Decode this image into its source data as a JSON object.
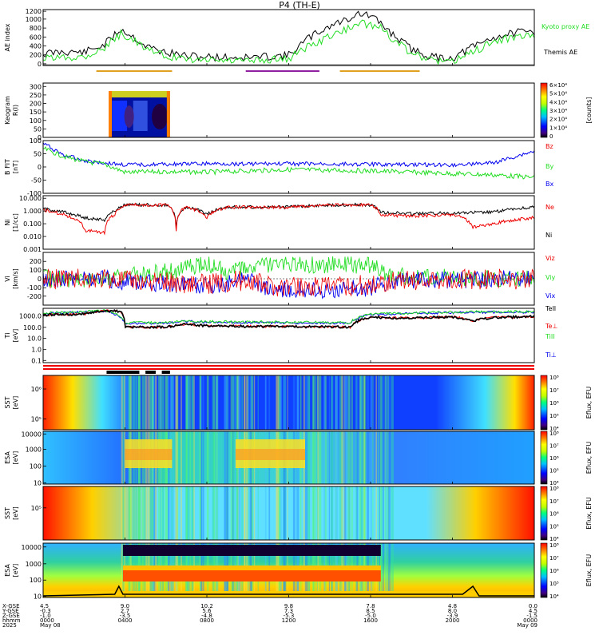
{
  "title": "P4 (TH-E)",
  "colors": {
    "black": "#000000",
    "green": "#22dd22",
    "red": "#ee0000",
    "blue": "#0000ee",
    "orange": "#e0a020",
    "purple": "#9020a0"
  },
  "chart_data": [
    {
      "type": "line",
      "panel": "ae",
      "ylabel": "AE index",
      "ylim": [
        0,
        1200
      ],
      "yticks": [
        "0",
        "200",
        "400",
        "600",
        "800",
        "1000",
        "1200"
      ],
      "legend": [
        {
          "name": "Kyoto proxy AE",
          "color": "#22dd22"
        },
        {
          "name": "Themis AE",
          "color": "#000000"
        }
      ],
      "x_hours": [
        0,
        1,
        2,
        3,
        3.8,
        4.4,
        5,
        5.8,
        7,
        8.5,
        10,
        12,
        13,
        14,
        15,
        15.3,
        16,
        16.5,
        17,
        18,
        19,
        20,
        21,
        22,
        23,
        24
      ],
      "series": [
        {
          "name": "Themis AE",
          "values": [
            250,
            300,
            280,
            450,
            780,
            620,
            420,
            300,
            200,
            180,
            170,
            220,
            600,
            850,
            1020,
            1120,
            1060,
            900,
            700,
            350,
            180,
            160,
            400,
            600,
            700,
            720
          ]
        },
        {
          "name": "Kyoto proxy AE",
          "values": [
            150,
            180,
            200,
            380,
            680,
            560,
            350,
            220,
            120,
            110,
            100,
            150,
            420,
            620,
            820,
            900,
            880,
            820,
            600,
            250,
            100,
            80,
            300,
            500,
            620,
            650
          ]
        }
      ],
      "bars": [
        {
          "from": 2.6,
          "to": 6.3,
          "color": "#e0a020"
        },
        {
          "from": 9.9,
          "to": 13.5,
          "color": "#9020a0"
        },
        {
          "from": 14.5,
          "to": 18.4,
          "color": "#e0a020"
        }
      ]
    },
    {
      "type": "heatmap",
      "panel": "keogram",
      "ylabel": "Keogram",
      "axis_unit": "R(I)",
      "ylim": [
        0,
        320
      ],
      "yticks": [
        "0",
        "50",
        "100",
        "150",
        "200",
        "250",
        "300"
      ],
      "coverage_hours": [
        3.2,
        6.2
      ],
      "colorbar_label": "[counts]",
      "colorbar_ticks": [
        "0",
        "1×10⁴",
        "2×10⁴",
        "3×10⁴",
        "4×10⁴",
        "5×10⁴",
        "6×10⁴"
      ]
    },
    {
      "type": "line",
      "panel": "bfield",
      "ylabel": "B FIT",
      "unit": "[nT]",
      "ylim": [
        -100,
        100
      ],
      "yticks": [
        "-100",
        "-50",
        "0",
        "50",
        "100"
      ],
      "legend": [
        {
          "name": "Bz",
          "color": "#ee0000"
        },
        {
          "name": "By",
          "color": "#22dd22"
        },
        {
          "name": "Bx",
          "color": "#0000ee"
        }
      ],
      "series": [
        {
          "name": "Bx",
          "points": [
            [
              0,
              90
            ],
            [
              1,
              45
            ],
            [
              2,
              25
            ],
            [
              3,
              15
            ],
            [
              4,
              8
            ],
            [
              6,
              10
            ],
            [
              8,
              12
            ],
            [
              12,
              12
            ],
            [
              16,
              10
            ],
            [
              20,
              8
            ],
            [
              22,
              15
            ],
            [
              24,
              60
            ]
          ]
        },
        {
          "name": "By",
          "points": [
            [
              0,
              70
            ],
            [
              1,
              40
            ],
            [
              2,
              20
            ],
            [
              3,
              10
            ],
            [
              4,
              -20
            ],
            [
              6,
              -18
            ],
            [
              8,
              -20
            ],
            [
              12,
              -10
            ],
            [
              16,
              -15
            ],
            [
              20,
              -25
            ],
            [
              22,
              -30
            ],
            [
              24,
              -40
            ]
          ]
        }
      ]
    },
    {
      "type": "line",
      "panel": "density",
      "ylabel": "Ni",
      "unit": "[1/cc]",
      "log": true,
      "yticks": [
        "0.001",
        "0.010",
        "0.100",
        "1.000",
        "10.000"
      ],
      "legend": [
        {
          "name": "Ne",
          "color": "#ee0000"
        },
        {
          "name": "Ni",
          "color": "#000000"
        }
      ],
      "series": [
        {
          "name": "Ni",
          "points": [
            [
              0,
              1.5
            ],
            [
              1,
              0.8
            ],
            [
              2,
              0.3
            ],
            [
              3,
              0.2
            ],
            [
              3.5,
              1
            ],
            [
              4,
              3
            ],
            [
              6,
              3
            ],
            [
              6.5,
              0.05
            ],
            [
              7,
              2
            ],
            [
              8,
              0.5
            ],
            [
              9,
              2
            ],
            [
              12,
              2
            ],
            [
              14,
              3
            ],
            [
              16,
              3
            ],
            [
              16.5,
              0.8
            ],
            [
              18,
              0.6
            ],
            [
              20,
              0.7
            ],
            [
              22,
              0.8
            ],
            [
              24,
              2
            ]
          ]
        },
        {
          "name": "Ne",
          "points": [
            [
              0,
              1.2
            ],
            [
              1,
              0.5
            ],
            [
              2,
              0.03
            ],
            [
              3,
              0.02
            ],
            [
              3.5,
              0.5
            ],
            [
              4,
              3
            ],
            [
              6,
              3
            ],
            [
              6.5,
              0.02
            ],
            [
              7,
              2
            ],
            [
              8,
              0.3
            ],
            [
              9,
              2
            ],
            [
              12,
              2
            ],
            [
              14,
              3
            ],
            [
              16,
              3
            ],
            [
              16.5,
              0.5
            ],
            [
              18,
              0.4
            ],
            [
              20,
              0.5
            ],
            [
              21,
              0.05
            ],
            [
              22,
              0.1
            ],
            [
              24,
              0.3
            ]
          ]
        }
      ]
    },
    {
      "type": "line",
      "panel": "velocity",
      "ylabel": "Vi",
      "unit": "[km/s]",
      "ylim": [
        -300,
        300
      ],
      "yticks": [
        "-200",
        "-100",
        "0",
        "100",
        "200"
      ],
      "legend": [
        {
          "name": "Viz",
          "color": "#ee0000"
        },
        {
          "name": "Viy",
          "color": "#22dd22"
        },
        {
          "name": "Vix",
          "color": "#0000ee"
        }
      ],
      "series": [
        {
          "name": "Viy",
          "points": [
            [
              0,
              0
            ],
            [
              3,
              0
            ],
            [
              4,
              30
            ],
            [
              6,
              80
            ],
            [
              7,
              120
            ],
            [
              8,
              160
            ],
            [
              9,
              80
            ],
            [
              11,
              150
            ],
            [
              14,
              160
            ],
            [
              16,
              150
            ],
            [
              17,
              40
            ],
            [
              20,
              10
            ],
            [
              24,
              0
            ]
          ]
        },
        {
          "name": "Vix",
          "points": [
            [
              0,
              0
            ],
            [
              3,
              0
            ],
            [
              4,
              -30
            ],
            [
              6,
              -60
            ],
            [
              8,
              -80
            ],
            [
              10,
              -20
            ],
            [
              11,
              -120
            ],
            [
              14,
              -130
            ],
            [
              16,
              -100
            ],
            [
              17,
              -20
            ],
            [
              24,
              0
            ]
          ]
        }
      ]
    },
    {
      "type": "line",
      "panel": "temperature",
      "ylabel": "Ti",
      "unit": "[eV]",
      "log": true,
      "yticks": [
        "0.1",
        "1.0",
        "10.0",
        "100.0",
        "1000.0"
      ],
      "legend": [
        {
          "name": "TeII",
          "color": "#000000"
        },
        {
          "name": "Te⊥",
          "color": "#ee0000"
        },
        {
          "name": "TiII",
          "color": "#22dd22"
        },
        {
          "name": "Ti⊥",
          "color": "#0000ee"
        }
      ],
      "series": [
        {
          "name": "Te",
          "points": [
            [
              0,
              1000
            ],
            [
              2,
              1200
            ],
            [
              3,
              2500
            ],
            [
              3.8,
              2000
            ],
            [
              4,
              80
            ],
            [
              6,
              80
            ],
            [
              7,
              150
            ],
            [
              8,
              100
            ],
            [
              12,
              90
            ],
            [
              15,
              80
            ],
            [
              16,
              600
            ],
            [
              18,
              500
            ],
            [
              20,
              700
            ],
            [
              21,
              300
            ],
            [
              22,
              600
            ],
            [
              24,
              700
            ]
          ]
        },
        {
          "name": "Ti",
          "points": [
            [
              0,
              1500
            ],
            [
              2,
              2000
            ],
            [
              3,
              2500
            ],
            [
              4,
              200
            ],
            [
              6,
              200
            ],
            [
              7,
              300
            ],
            [
              8,
              250
            ],
            [
              12,
              220
            ],
            [
              15,
              200
            ],
            [
              16,
              1200
            ],
            [
              18,
              1500
            ],
            [
              20,
              1800
            ],
            [
              22,
              2000
            ],
            [
              24,
              2000
            ]
          ]
        }
      ]
    },
    {
      "type": "heatmap",
      "panel": "sst_e",
      "ylabel": "SST",
      "unit": "[eV]",
      "yticks": [
        "10⁵",
        "10⁶"
      ],
      "colorbar_label": "Eflux, EFU",
      "colorbar_ticks": [
        "10⁴",
        "10⁵",
        "10⁶",
        "10⁷",
        "10⁸"
      ]
    },
    {
      "type": "heatmap",
      "panel": "esa_e",
      "ylabel": "ESA",
      "unit": "[eV]",
      "yticks": [
        "10",
        "100",
        "1000",
        "10000"
      ],
      "colorbar_label": "Eflux, EFU",
      "colorbar_ticks": [
        "10⁴",
        "10⁵",
        "10⁶",
        "10⁷",
        "10⁸"
      ]
    },
    {
      "type": "heatmap",
      "panel": "sst_i",
      "ylabel": "SST",
      "unit": "[eV]",
      "yticks": [
        "10⁵"
      ],
      "colorbar_label": "Eflux, EFU",
      "colorbar_ticks": [
        "10⁴",
        "10⁵",
        "10⁶",
        "10⁷",
        "10⁸"
      ]
    },
    {
      "type": "heatmap",
      "panel": "esa_i",
      "ylabel": "ESA",
      "unit": "[eV]",
      "yticks": [
        "10",
        "100",
        "1000",
        "10000"
      ],
      "colorbar_label": "Eflux, EFU",
      "colorbar_ticks": [
        "10⁴",
        "10⁵",
        "10⁶",
        "10⁷",
        "10⁸"
      ]
    }
  ],
  "xaxis": {
    "row_labels": [
      "X-GSE",
      "Y-GSE",
      "Z-GSE",
      "hhmm",
      "2025"
    ],
    "columns": [
      [
        "4.5",
        "-0.3",
        "-1.0",
        "0000",
        "May 08"
      ],
      [
        "9.0",
        "2.7",
        "-3.5",
        "0400",
        ""
      ],
      [
        "10.2",
        "5.6",
        "-4.8",
        "0800",
        ""
      ],
      [
        "9.8",
        "7.3",
        "-5.3",
        "1200",
        ""
      ],
      [
        "7.8",
        "8.5",
        "-5.0",
        "1600",
        ""
      ],
      [
        "4.8",
        "8.0",
        "-3.9",
        "2000",
        ""
      ],
      [
        "0.0",
        "4.5",
        "-1.5",
        "0000",
        "May 09"
      ]
    ]
  }
}
